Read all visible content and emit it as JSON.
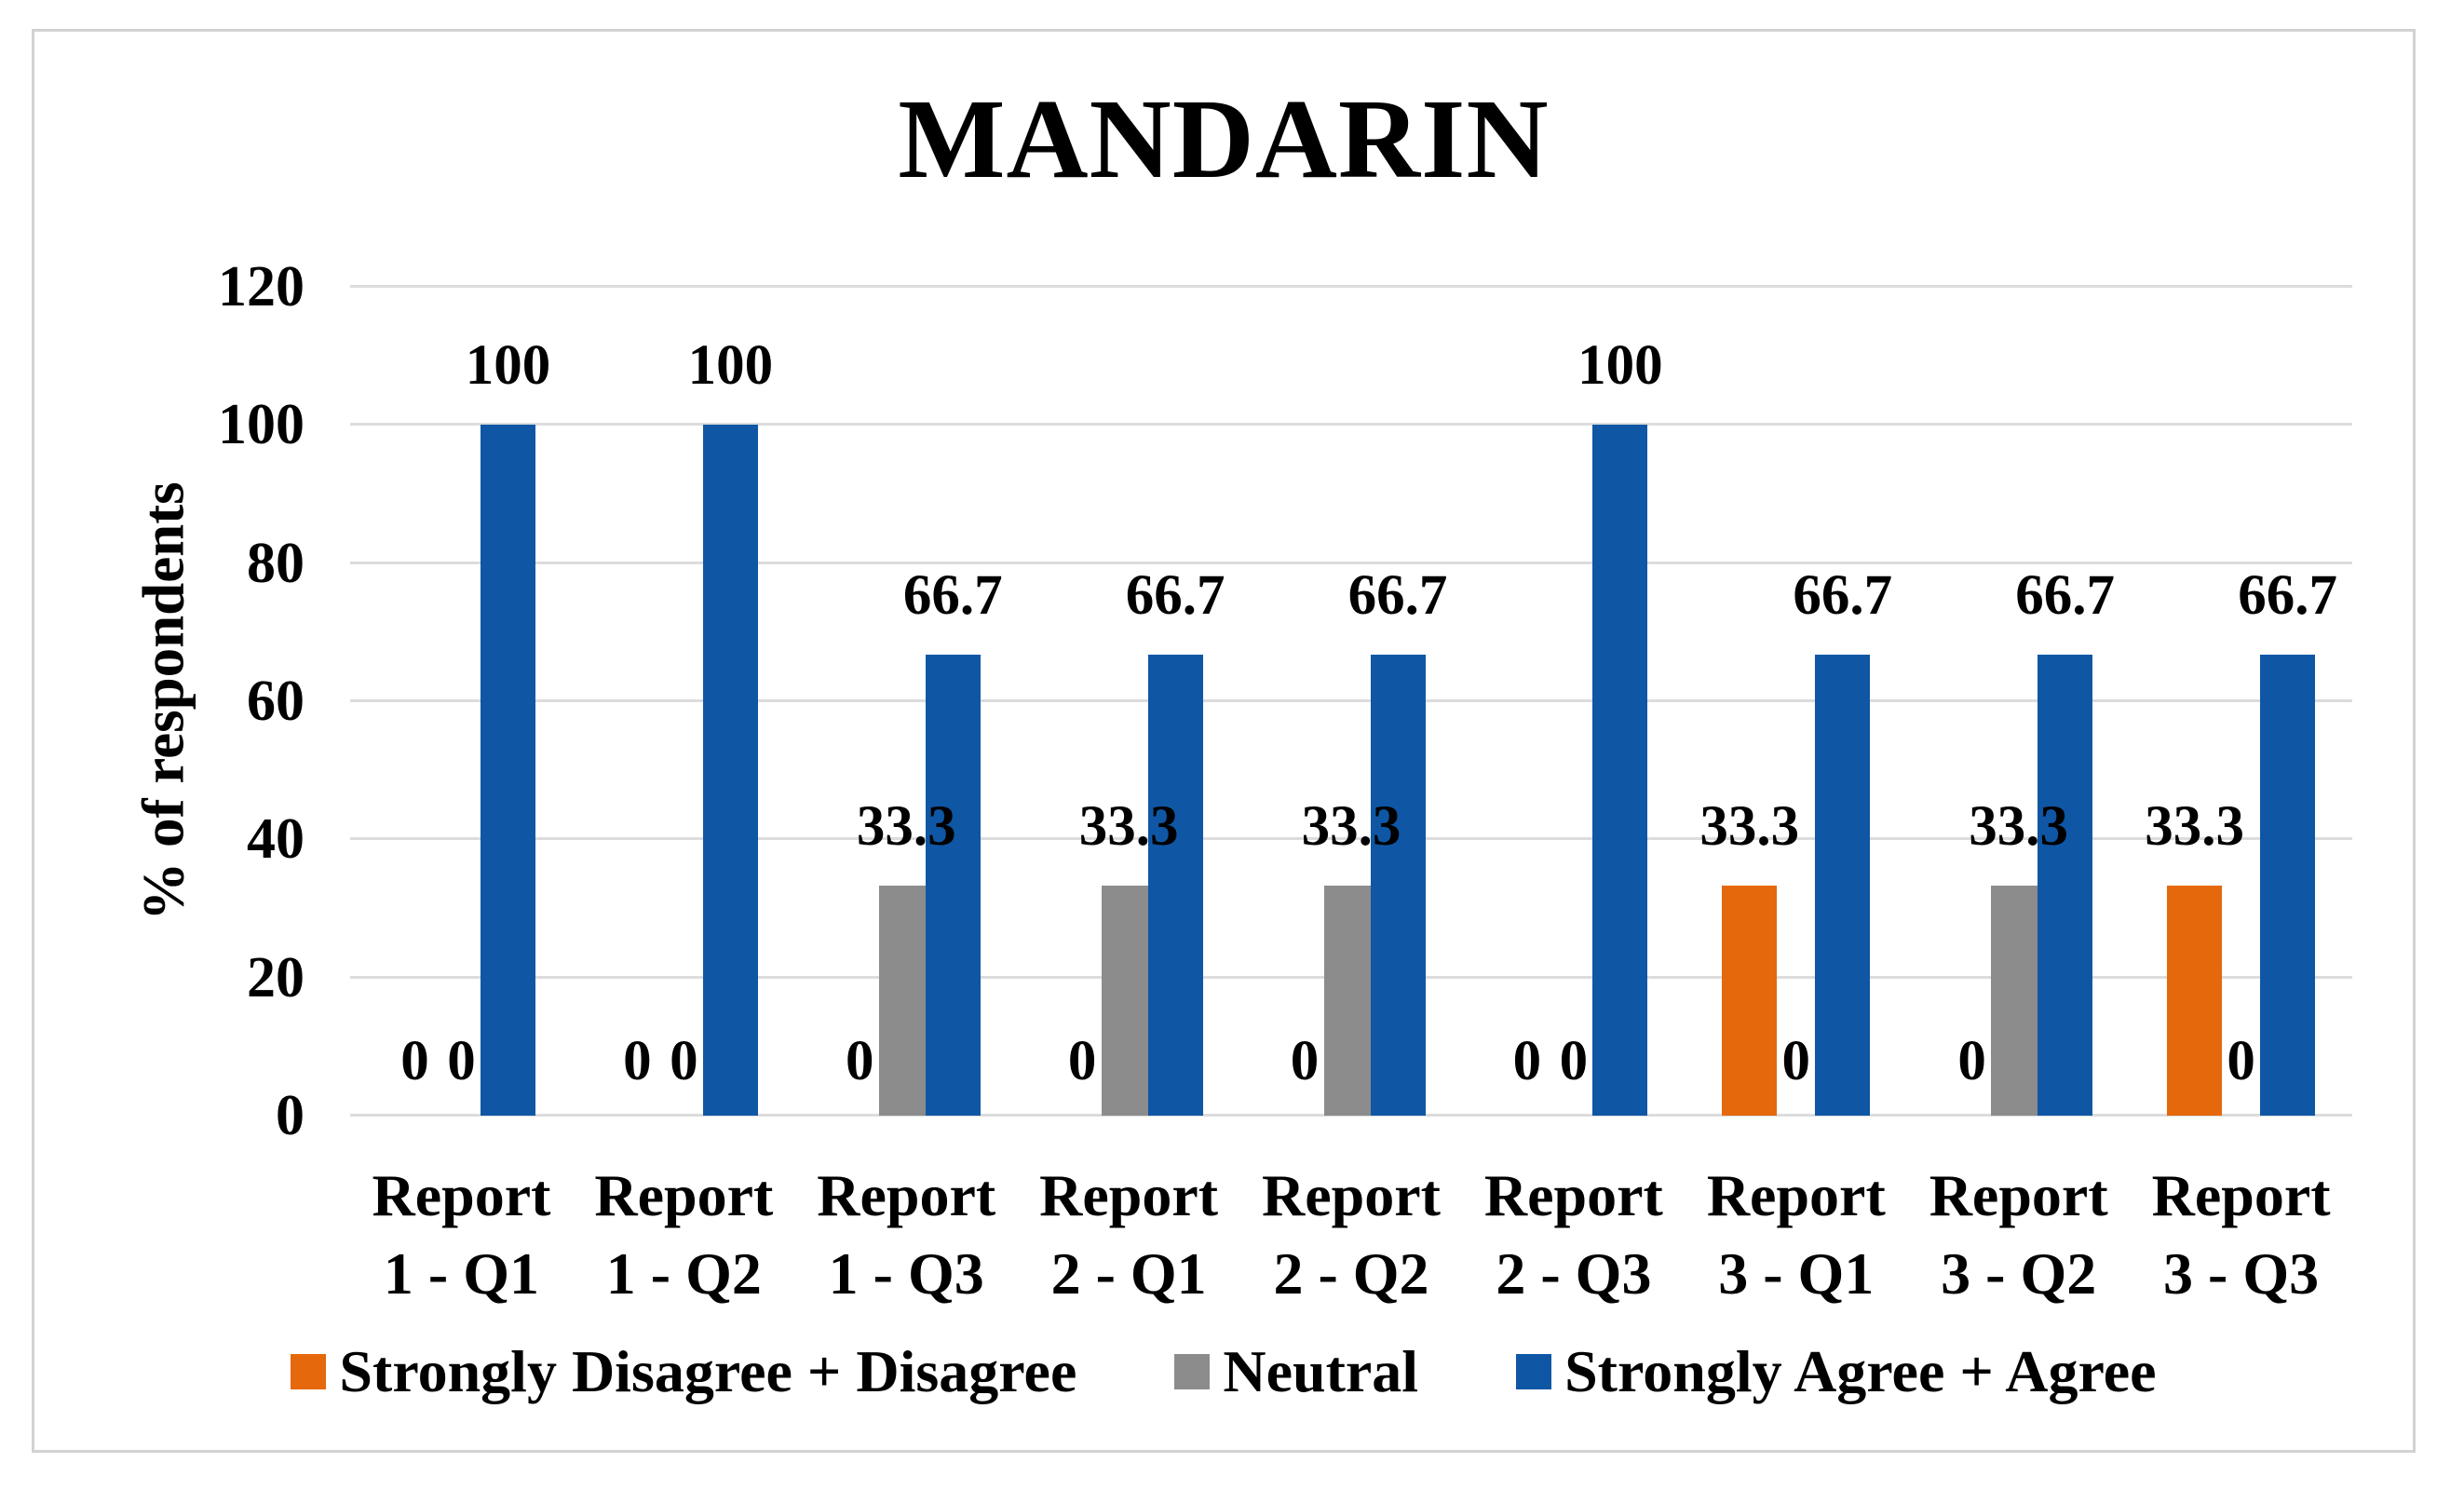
{
  "chart_data": {
    "type": "bar",
    "title": "MANDARIN",
    "ylabel": "% of respondents",
    "ylim": [
      0,
      120
    ],
    "yticks": [
      0,
      20,
      40,
      60,
      80,
      100,
      120
    ],
    "grid": "horizontal",
    "data_labels": true,
    "legend_position": "bottom",
    "categories": [
      "Report 1 - Q1",
      "Report 1 - Q2",
      "Report 1 - Q3",
      "Report 2 - Q1",
      "Report 2 - Q2",
      "Report 2 - Q3",
      "Report 3 - Q1",
      "Report 3 - Q2",
      "Report 3 - Q3"
    ],
    "series": [
      {
        "name": "Strongly Disagree + Disagree",
        "color": "#E6680C",
        "values": [
          0,
          0,
          0,
          0,
          0,
          0,
          33.3,
          0,
          33.3
        ]
      },
      {
        "name": "Neutral",
        "color": "#8C8C8C",
        "values": [
          0,
          0,
          33.3,
          33.3,
          33.3,
          0,
          0,
          33.3,
          0
        ]
      },
      {
        "name": "Strongly Agree + Agree",
        "color": "#0F57A5",
        "values": [
          100,
          100,
          66.7,
          66.7,
          66.7,
          100,
          66.7,
          66.7,
          66.7
        ]
      }
    ]
  },
  "colors": {
    "gridline": "#DCDCDC",
    "frame_border": "#D2D2D2",
    "text": "#000000"
  }
}
